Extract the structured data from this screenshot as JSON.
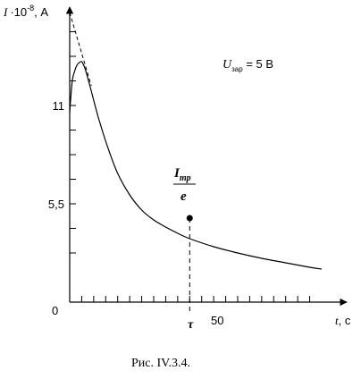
{
  "chart_data": {
    "type": "line",
    "title": "",
    "xlabel": {
      "var": "t",
      "unit": ", с"
    },
    "ylabel": {
      "var": "I",
      "mult": "·10",
      "exp": "-8",
      "unit": ", А"
    },
    "xlim": [
      0,
      105
    ],
    "ylim": [
      0,
      16.5
    ],
    "origin_label": "0",
    "xtick_labels": [
      {
        "x": 50,
        "label": "50"
      }
    ],
    "ytick_labels": [
      {
        "y": 11,
        "label": "11"
      },
      {
        "y": 5.5,
        "label": "5,5"
      }
    ],
    "x_minor_ticks": [
      5,
      10,
      15,
      20,
      25,
      30,
      35,
      40,
      45,
      50,
      55,
      60,
      65,
      70,
      75,
      80,
      85,
      90,
      95,
      100
    ],
    "y_minor_ticks": [
      2.75,
      4.125,
      5.5,
      6.875,
      8.25,
      9.625,
      11,
      12.375,
      13.75,
      15.125
    ],
    "series": [
      {
        "values_x": [
          0,
          1,
          2,
          3,
          4,
          5,
          6,
          7,
          9,
          12,
          16,
          20,
          25,
          30,
          35,
          40,
          45,
          50,
          60,
          70,
          80,
          90,
          100,
          105
        ],
        "values_y": [
          10.6,
          12.3,
          12.9,
          13.25,
          13.4,
          13.45,
          13.2,
          12.8,
          11.8,
          10.3,
          8.6,
          7.2,
          6.0,
          5.15,
          4.6,
          4.2,
          3.85,
          3.55,
          3.1,
          2.75,
          2.45,
          2.2,
          1.95,
          1.85
        ]
      }
    ],
    "tangent": {
      "x": [
        0,
        9
      ],
      "y": [
        16.2,
        12.1
      ]
    },
    "marked_point": {
      "x": 50,
      "y": 4.7
    },
    "annotations": {
      "tau_label": "τ",
      "fraction_numerator": "I",
      "fraction_numerator_sub": "тр",
      "fraction_denominator": "e",
      "voltage_var": "U",
      "voltage_sub": "зар",
      "voltage_value": " = 5 В"
    }
  },
  "caption": "Рис. IV.3.4."
}
